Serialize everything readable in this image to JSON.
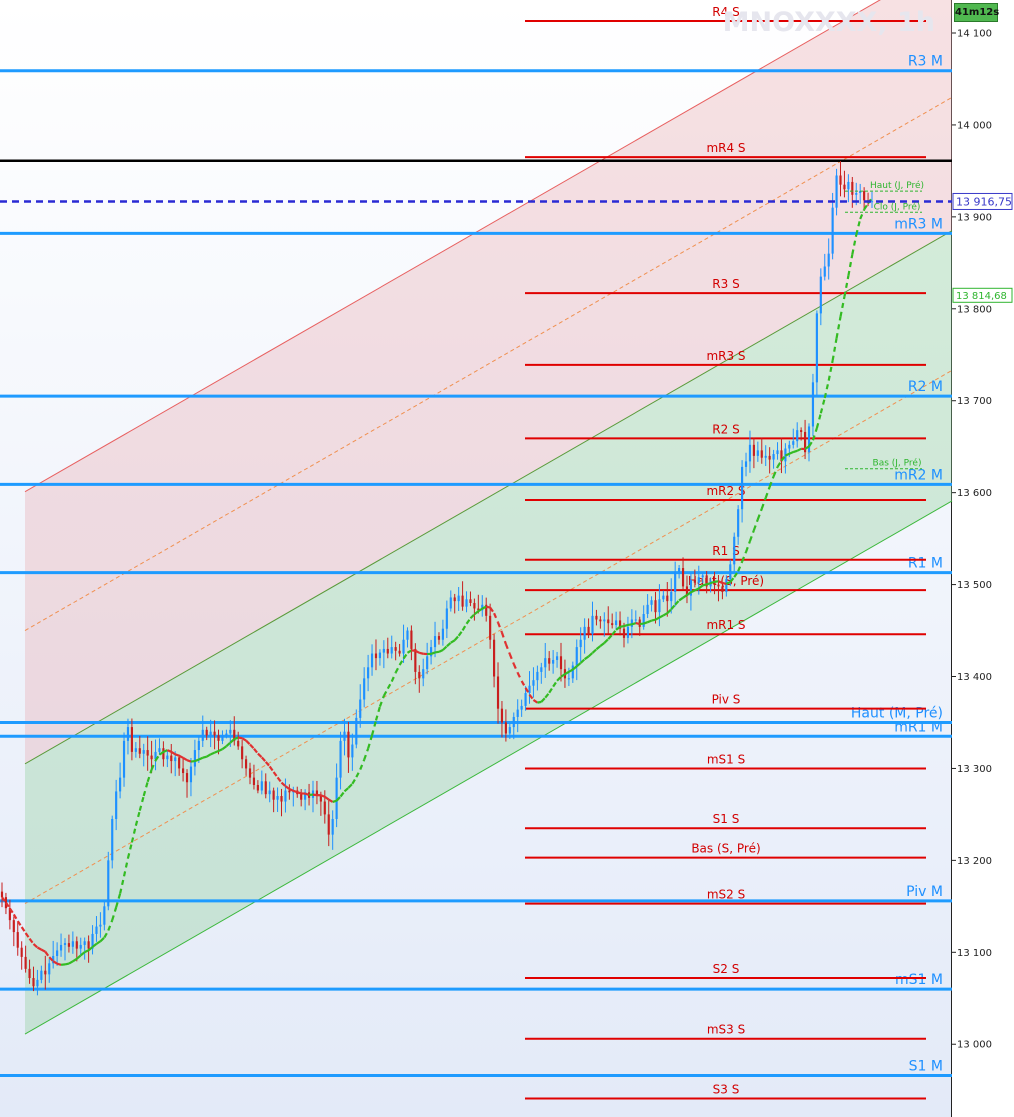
{
  "chart_data": {
    "type": "candlestick",
    "title": "MNOXXXX, 1h",
    "timer": "41m12s",
    "ylim": [
      12930,
      14125
    ],
    "y_ticks": [
      {
        "v": 14100,
        "label": "14 100"
      },
      {
        "v": 14000,
        "label": "14 000"
      },
      {
        "v": 13900,
        "label": "13 900"
      },
      {
        "v": 13800,
        "label": "13 800"
      },
      {
        "v": 13700,
        "label": "13 700"
      },
      {
        "v": 13600,
        "label": "13 600"
      },
      {
        "v": 13500,
        "label": "13 500"
      },
      {
        "v": 13400,
        "label": "13 400"
      },
      {
        "v": 13300,
        "label": "13 300"
      },
      {
        "v": 13200,
        "label": "13 200"
      },
      {
        "v": 13100,
        "label": "13 100"
      },
      {
        "v": 13000,
        "label": "13 000"
      }
    ],
    "price_label": {
      "v": 13916.75,
      "label": "13 916,75",
      "color": "#3838c8"
    },
    "ma_label": {
      "v": 13814.68,
      "label": "13 814,68",
      "color": "#2fb52f"
    },
    "colors": {
      "up": "#1e90ff",
      "down": "#c81e1e",
      "ma_up": "#33bb22",
      "ma_down": "#e03030",
      "s_level": "#e00000",
      "m_level": "#1e9bff",
      "price_line": "#2a2ad4"
    },
    "weekly_levels": [
      {
        "label": "R4 S",
        "v": 14113
      },
      {
        "label": "mR4 S",
        "v": 13965
      },
      {
        "label": "R3 S",
        "v": 13817
      },
      {
        "label": "mR3 S",
        "v": 13739
      },
      {
        "label": "R2 S",
        "v": 13659
      },
      {
        "label": "mR2 S",
        "v": 13592
      },
      {
        "label": "R1 S",
        "v": 13527
      },
      {
        "label": "mR1 S",
        "v": 13446
      },
      {
        "label": "Piv S",
        "v": 13365
      },
      {
        "label": "mS1 S",
        "v": 13300
      },
      {
        "label": "S1 S",
        "v": 13235
      },
      {
        "label": "mS2 S",
        "v": 13153
      },
      {
        "label": "S2 S",
        "v": 13072
      },
      {
        "label": "mS3 S",
        "v": 13006
      },
      {
        "label": "S3 S",
        "v": 12941
      }
    ],
    "weekly_extra": [
      {
        "label": "Haut (S, Pré)",
        "v": 13494
      },
      {
        "label": "Bas (S, Pré)",
        "v": 13203
      }
    ],
    "monthly_levels": [
      {
        "label": "R3 M",
        "v": 14059
      },
      {
        "label": "mR3 M",
        "v": 13882
      },
      {
        "label": "R2 M",
        "v": 13705
      },
      {
        "label": "mR2 M",
        "v": 13609
      },
      {
        "label": "R1 M",
        "v": 13513
      },
      {
        "label": "mR1 M",
        "v": 13335
      },
      {
        "label": "Piv M",
        "v": 13156
      },
      {
        "label": "mS1 M",
        "v": 13060
      },
      {
        "label": "S1 M",
        "v": 12966
      }
    ],
    "monthly_extra": [
      {
        "label": "Haut (M, Pré)",
        "v": 13350
      }
    ],
    "daily_labels": [
      {
        "label": "Haut (J, Pré)",
        "v": 13928
      },
      {
        "label": "Clo (J, Pré)",
        "v": 13905
      },
      {
        "label": "Bas (J, Pré)",
        "v": 13626
      }
    ],
    "last_black_level": 13961,
    "channel": {
      "x_start": 0,
      "x_end": 1,
      "lower": [
        13011,
        13591
      ],
      "mid": [
        13305,
        13885
      ],
      "upper": [
        13601,
        14181
      ],
      "inner_low": [
        13153,
        13733
      ],
      "inner_high": [
        13450,
        14030
      ]
    },
    "closes": [
      13160,
      13148,
      13135,
      13122,
      13105,
      13095,
      13082,
      13072,
      13063,
      13070,
      13080,
      13076,
      13088,
      13096,
      13102,
      13108,
      13110,
      13106,
      13112,
      13104,
      13108,
      13112,
      13104,
      13120,
      13128,
      13130,
      13150,
      13200,
      13245,
      13275,
      13290,
      13330,
      13345,
      13318,
      13322,
      13316,
      13320,
      13314,
      13310,
      13318,
      13322,
      13310,
      13314,
      13308,
      13312,
      13300,
      13295,
      13285,
      13302,
      13320,
      13330,
      13342,
      13336,
      13340,
      13336,
      13330,
      13336,
      13338,
      13342,
      13330,
      13324,
      13310,
      13300,
      13290,
      13282,
      13276,
      13286,
      13272,
      13276,
      13266,
      13270,
      13264,
      13276,
      13274,
      13276,
      13272,
      13266,
      13274,
      13268,
      13276,
      13270,
      13264,
      13250,
      13228,
      13245,
      13290,
      13330,
      13340,
      13312,
      13326,
      13355,
      13375,
      13398,
      13410,
      13425,
      13420,
      13426,
      13430,
      13425,
      13432,
      13428,
      13425,
      13440,
      13450,
      13430,
      13405,
      13398,
      13408,
      13422,
      13432,
      13444,
      13440,
      13452,
      13474,
      13486,
      13482,
      13488,
      13476,
      13484,
      13480,
      13474,
      13472,
      13478,
      13466,
      13440,
      13400,
      13365,
      13350,
      13338,
      13345,
      13356,
      13364,
      13368,
      13382,
      13390,
      13396,
      13405,
      13410,
      13420,
      13414,
      13418,
      13422,
      13408,
      13398,
      13398,
      13412,
      13432,
      13440,
      13454,
      13446,
      13466,
      13462,
      13460,
      13462,
      13458,
      13456,
      13461,
      13452,
      13442,
      13454,
      13462,
      13462,
      13454,
      13468,
      13478,
      13483,
      13470,
      13484,
      13488,
      13482,
      13492,
      13514,
      13518,
      13498,
      13488,
      13505,
      13502,
      13508,
      13510,
      13498,
      13504,
      13500,
      13498,
      13492,
      13506,
      13522,
      13552,
      13582,
      13628,
      13634,
      13652,
      13640,
      13646,
      13638,
      13640,
      13636,
      13642,
      13646,
      13634,
      13648,
      13652,
      13656,
      13668,
      13666,
      13644,
      13672,
      13720,
      13795,
      13835,
      13846,
      13860,
      13910,
      13945,
      13935,
      13930,
      13938,
      13924,
      13926,
      13928,
      13918,
      13916,
      13917
    ]
  },
  "annotations": {
    "haut_jpre": "Haut (J, Pré)",
    "clo_jpre": "Clo (J, Pré)",
    "bas_jpre": "Bas (J, Pré)"
  }
}
